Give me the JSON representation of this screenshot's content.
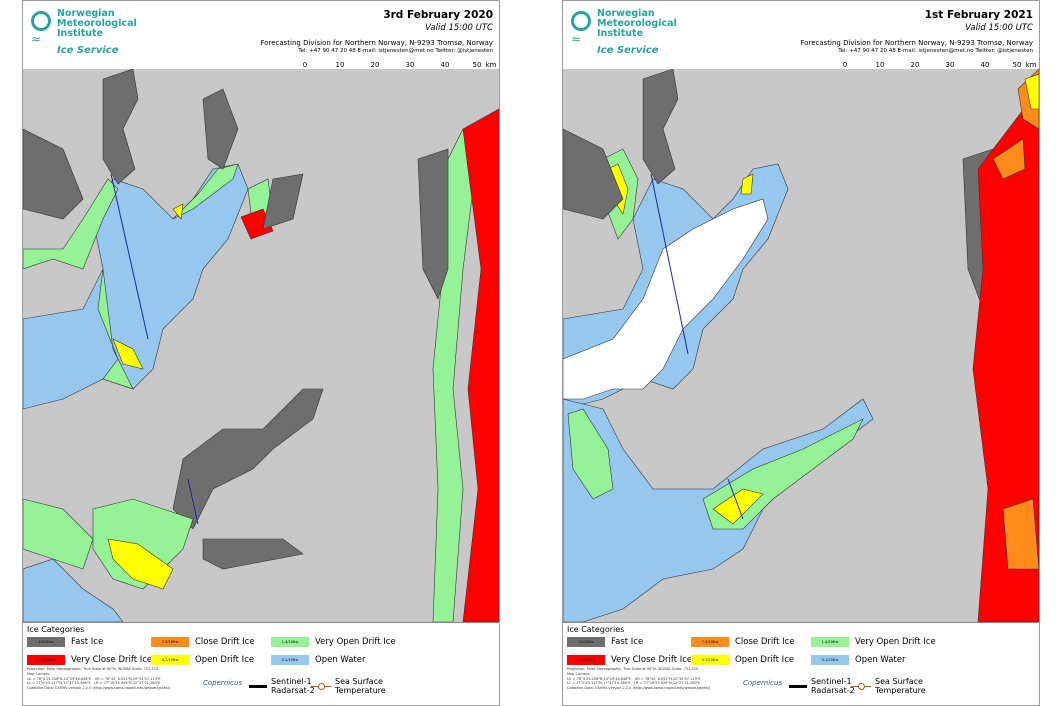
{
  "colors": {
    "fast_ice": "#6e6e6e",
    "very_close_drift": "#ff0000",
    "close_drift": "#ff8c1a",
    "open_drift": "#ffff00",
    "very_open_drift": "#96f296",
    "open_water": "#96c8f0",
    "land": "#c8c8c8",
    "line": "#1e2aa0",
    "white_ice": "#ffffff"
  },
  "org": {
    "name_line1": "Norwegian",
    "name_line2": "Meteorological",
    "name_line3": "Institute",
    "service": "Ice Service",
    "wave_icon": "wave-icon"
  },
  "division": "Forecasting Division for Northern Norway, N-9293 Tromsø, Norway",
  "contact": "Tel: +47 90 47 20 48   E-mail: istjenesten@met.no   Twitter: @istjenesten",
  "valid": "Valid 15:00 UTC",
  "scale": {
    "ticks": [
      "0",
      "10",
      "20",
      "30",
      "40",
      "50"
    ],
    "unit": "km"
  },
  "legend": {
    "title": "Ice Categories",
    "items": [
      {
        "label": "Fast Ice",
        "swatch_text": "10/10ths",
        "color_key": "fast_ice"
      },
      {
        "label": "Close Drift Ice",
        "swatch_text": "7-9/10ths",
        "color_key": "close_drift"
      },
      {
        "label": "Very Open Drift Ice",
        "swatch_text": "1-4/10ths",
        "color_key": "very_open_drift"
      },
      {
        "label": "Very Close Drift Ice",
        "swatch_text": "9-10/10ths",
        "color_key": "very_close_drift"
      },
      {
        "label": "Open Drift Ice",
        "swatch_text": "4-7/10ths",
        "color_key": "open_drift"
      },
      {
        "label": "Open Water",
        "swatch_text": "0-1/10ths",
        "color_key": "open_water"
      }
    ],
    "projection": "Projection: Polar Stereographic, True Scale at 90°N, WGS84         Scale: 751,320",
    "corners_title": "Map Corners:",
    "corner_ul": "UL = 78°4'25.256\"N,14°29'46.648\"E",
    "corner_ur": "UR = 78°42' 6.052\"N,20°34'57.123\"E",
    "corner_ll": "LL = 77°0'43.117\"N,17°47'15.489\"E",
    "corner_lr": "LR = 77°19'55.929\"N,12°27'21.280\"E",
    "coastline": "Coastline Data: GSHHS version 2.2.0 (http://www.soest.hawaii.edu/wessel/gshhs/)",
    "copernicus": "Copernicus",
    "sentinel": "Sentinel-1",
    "radarsat": "Radarsat-2",
    "sst_line1": "Sea Surface",
    "sst_line2": "Temperature"
  },
  "panels": [
    {
      "date": "3rd February 2020"
    },
    {
      "date": "1st February 2021"
    }
  ]
}
